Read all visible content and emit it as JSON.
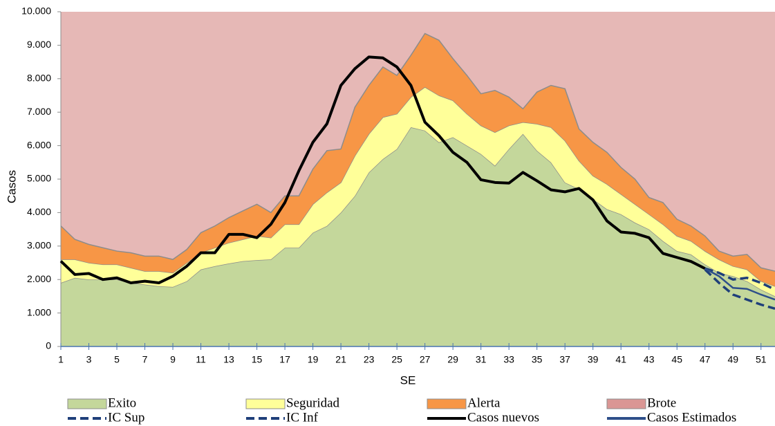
{
  "chart_data": {
    "type": "stacked_area_line",
    "x_label": "SE",
    "y_label": "Casos",
    "x": [
      1,
      2,
      3,
      4,
      5,
      6,
      7,
      8,
      9,
      10,
      11,
      12,
      13,
      14,
      15,
      16,
      17,
      18,
      19,
      20,
      21,
      22,
      23,
      24,
      25,
      26,
      27,
      28,
      29,
      30,
      31,
      32,
      33,
      34,
      35,
      36,
      37,
      38,
      39,
      40,
      41,
      42,
      43,
      44,
      45,
      46,
      47,
      48,
      49,
      50,
      51,
      52
    ],
    "xlim": [
      1,
      52
    ],
    "xticks": [
      1,
      3,
      5,
      7,
      9,
      11,
      13,
      15,
      17,
      19,
      21,
      23,
      25,
      27,
      29,
      31,
      33,
      35,
      37,
      39,
      41,
      43,
      45,
      47,
      49,
      51
    ],
    "ylim": [
      0,
      10000
    ],
    "yticks": [
      0,
      {
        "value": 1000,
        "label": "1.000"
      },
      {
        "value": 2000,
        "label": "2.000"
      },
      {
        "value": 3000,
        "label": "3.000"
      },
      {
        "value": 4000,
        "label": "4.000"
      },
      {
        "value": 5000,
        "label": "5.000"
      },
      {
        "value": 6000,
        "label": "6.000"
      },
      {
        "value": 7000,
        "label": "7.000"
      },
      {
        "value": 8000,
        "label": "8.000"
      },
      {
        "value": 9000,
        "label": "9.000"
      },
      {
        "value": 10000,
        "label": "10.000"
      }
    ],
    "areas": [
      {
        "name": "Exito",
        "color": "#c4d79b",
        "values": [
          1900,
          2050,
          2000,
          2000,
          2000,
          1900,
          1850,
          1800,
          1780,
          1950,
          2300,
          2400,
          2480,
          2550,
          2580,
          2600,
          2950,
          2950,
          3400,
          3600,
          4000,
          4500,
          5200,
          5600,
          5900,
          6550,
          6450,
          6100,
          6250,
          6000,
          5750,
          5400,
          5900,
          6350,
          5850,
          5500,
          4900,
          4700,
          4400,
          4100,
          3950,
          3700,
          3500,
          3150,
          2850,
          2750,
          2450,
          2200,
          2100,
          1950,
          1700,
          1500
        ]
      },
      {
        "name": "Seguridad",
        "color": "#ffff99",
        "values": [
          700,
          550,
          500,
          450,
          450,
          450,
          400,
          450,
          420,
          550,
          500,
          550,
          620,
          650,
          720,
          650,
          700,
          700,
          850,
          1000,
          900,
          1200,
          1150,
          1250,
          1050,
          900,
          1300,
          1400,
          1100,
          950,
          850,
          1000,
          700,
          350,
          800,
          1050,
          1250,
          850,
          700,
          750,
          600,
          550,
          450,
          500,
          450,
          400,
          400,
          400,
          300,
          350,
          250,
          300
        ]
      },
      {
        "name": "Alerta",
        "color": "#f79646",
        "values": [
          1000,
          600,
          550,
          500,
          400,
          450,
          450,
          450,
          400,
          400,
          600,
          650,
          750,
          850,
          950,
          750,
          850,
          850,
          1050,
          1250,
          1000,
          1450,
          1450,
          1500,
          1150,
          1250,
          1600,
          1650,
          1250,
          1150,
          950,
          1250,
          850,
          400,
          950,
          1250,
          1550,
          950,
          1000,
          950,
          800,
          750,
          500,
          650,
          500,
          450,
          450,
          250,
          300,
          450,
          400,
          450
        ]
      },
      {
        "name": "Brote",
        "color": "#da9694"
      }
    ],
    "series": [
      {
        "name": "IC Sup",
        "color": "#1f3f7a",
        "dashed": true,
        "values": [
          null,
          null,
          null,
          null,
          null,
          null,
          null,
          null,
          null,
          null,
          null,
          null,
          null,
          null,
          null,
          null,
          null,
          null,
          null,
          null,
          null,
          null,
          null,
          null,
          null,
          null,
          null,
          null,
          null,
          null,
          null,
          null,
          null,
          null,
          null,
          null,
          null,
          null,
          null,
          null,
          null,
          null,
          null,
          null,
          null,
          null,
          2330,
          2200,
          2000,
          2050,
          1900,
          1700
        ]
      },
      {
        "name": "IC Inf",
        "color": "#1f3f7a",
        "dashed": true,
        "values": [
          null,
          null,
          null,
          null,
          null,
          null,
          null,
          null,
          null,
          null,
          null,
          null,
          null,
          null,
          null,
          null,
          null,
          null,
          null,
          null,
          null,
          null,
          null,
          null,
          null,
          null,
          null,
          null,
          null,
          null,
          null,
          null,
          null,
          null,
          null,
          null,
          null,
          null,
          null,
          null,
          null,
          null,
          null,
          null,
          null,
          null,
          2300,
          1900,
          1550,
          1400,
          1250,
          1130
        ]
      },
      {
        "name": "Casos nuevos",
        "color": "#000000",
        "dashed": false,
        "values": [
          2550,
          2150,
          2180,
          2000,
          2050,
          1900,
          1950,
          1900,
          2100,
          2400,
          2800,
          2800,
          3350,
          3350,
          3250,
          3650,
          4300,
          5250,
          6100,
          6650,
          7800,
          8300,
          8650,
          8620,
          8350,
          7800,
          6700,
          6300,
          5800,
          5500,
          4980,
          4900,
          4880,
          5200,
          4950,
          4680,
          4620,
          4720,
          4380,
          3750,
          3420,
          3380,
          3250,
          2780,
          2660,
          2540,
          2330,
          null,
          null,
          null,
          null,
          null
        ]
      },
      {
        "name": "Casos Estimados",
        "color": "#2e4f8a",
        "dashed": false,
        "values": [
          null,
          null,
          null,
          null,
          null,
          null,
          null,
          null,
          null,
          null,
          null,
          null,
          null,
          null,
          null,
          null,
          null,
          null,
          null,
          null,
          null,
          null,
          null,
          null,
          null,
          null,
          null,
          null,
          null,
          null,
          null,
          null,
          null,
          null,
          null,
          null,
          null,
          null,
          null,
          null,
          null,
          null,
          null,
          null,
          null,
          null,
          2330,
          2100,
          1750,
          1720,
          1550,
          1400
        ]
      }
    ]
  }
}
